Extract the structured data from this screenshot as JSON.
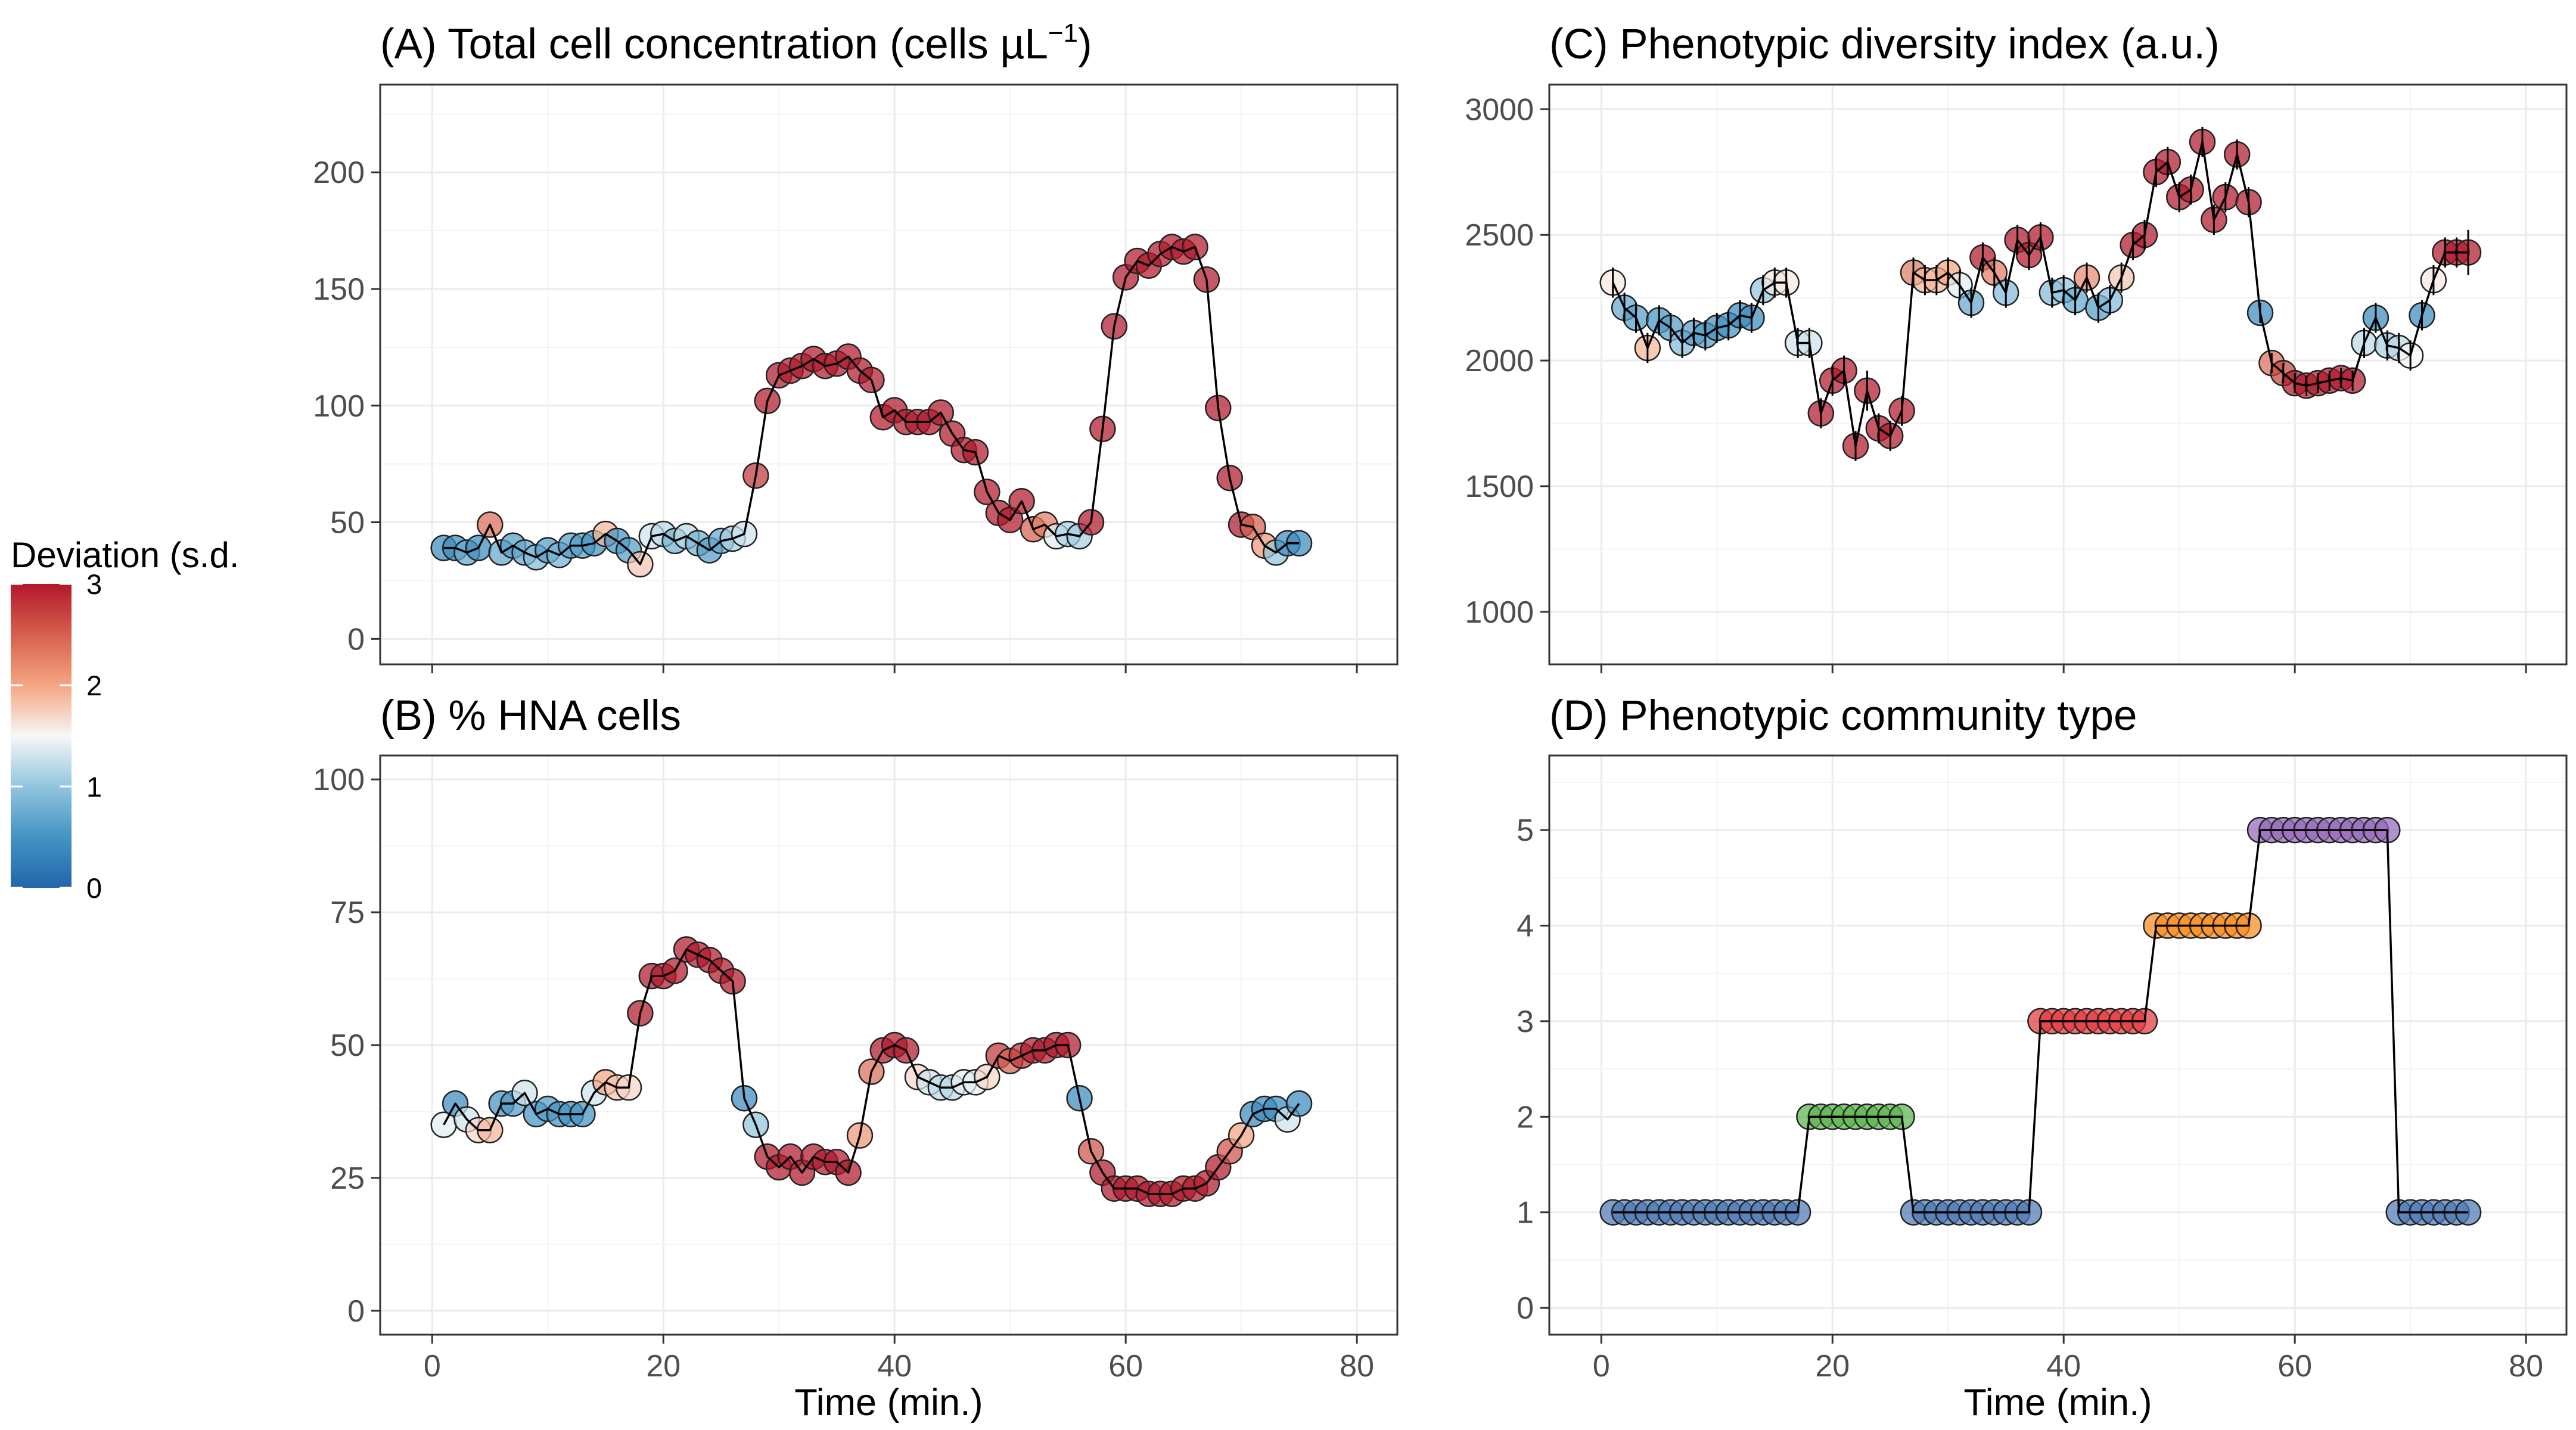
{
  "legend": {
    "title": "Deviation (s.d.",
    "ticks": [
      "0",
      "1",
      "2",
      "3"
    ],
    "min": 0,
    "max": 3,
    "colors": [
      "#2166ac",
      "#4393c3",
      "#92c5de",
      "#f7f7f7",
      "#f4a582",
      "#d6604d",
      "#b2182b"
    ]
  },
  "community_colors": {
    "1": "#4e79b5",
    "2": "#5cb44d",
    "3": "#e3393c",
    "4": "#f88d1e",
    "5": "#9468b8"
  },
  "chart_data": [
    {
      "id": "A",
      "type": "line",
      "title": "(A) Total cell concentration (cells µL",
      "title_sup": "−1",
      "title_end": ")",
      "xlabel": "",
      "ylabel": "",
      "xlim": [
        -4.5,
        83.5
      ],
      "ylim": [
        -10.9,
        237.6
      ],
      "xticks": [
        0,
        20,
        40,
        60,
        80
      ],
      "xticklabels": [
        "",
        "",
        "",
        "",
        ""
      ],
      "yticks": [
        0,
        50,
        100,
        150,
        200
      ],
      "yticklabels": [
        "0",
        "50",
        "100",
        "150",
        "200"
      ],
      "grid": true,
      "color_mode": "deviation",
      "x": [
        1,
        2,
        3,
        4,
        5,
        6,
        7,
        8,
        9,
        10,
        11,
        12,
        13,
        14,
        15,
        16,
        17,
        18,
        19,
        20,
        21,
        22,
        23,
        24,
        25,
        26,
        27,
        28,
        29,
        30,
        31,
        32,
        33,
        34,
        35,
        36,
        37,
        38,
        39,
        40,
        41,
        42,
        43,
        44,
        45,
        46,
        47,
        48,
        49,
        50,
        51,
        52,
        53,
        54,
        55,
        56,
        57,
        58,
        59,
        60,
        61,
        62,
        63,
        64,
        65,
        66,
        67,
        68,
        69,
        70,
        71,
        72,
        73,
        74,
        75
      ],
      "y": [
        39,
        39,
        37,
        39,
        49,
        37,
        40,
        37,
        35,
        38,
        36,
        40,
        40,
        41,
        45,
        42,
        38,
        32,
        44,
        45,
        42,
        44,
        41,
        38,
        42,
        43,
        45,
        70,
        102,
        113,
        115,
        117,
        120,
        117,
        118,
        121,
        115,
        111,
        95,
        98,
        93,
        93,
        93,
        97,
        88,
        81,
        80,
        63,
        54,
        51,
        59,
        47,
        49,
        44,
        45,
        44,
        50,
        90,
        134,
        155,
        162,
        160,
        165,
        168,
        166,
        168,
        154,
        99,
        69,
        49,
        48,
        40,
        37,
        41,
        41
      ],
      "dev": [
        0.4,
        0.4,
        0.7,
        0.4,
        2.4,
        0.7,
        0.6,
        0.7,
        0.9,
        0.6,
        0.8,
        0.6,
        0.6,
        0.5,
        1.9,
        0.5,
        0.6,
        1.8,
        1.3,
        1.2,
        0.8,
        1.2,
        0.8,
        0.6,
        0.7,
        1.1,
        1.3,
        2.8,
        3,
        3,
        3,
        3,
        3,
        3,
        3,
        3,
        3,
        3,
        3,
        3,
        3,
        3,
        3,
        3,
        3,
        3,
        3,
        3,
        3,
        3,
        3,
        2.5,
        2.3,
        1.4,
        1.1,
        1.1,
        3,
        3,
        3,
        3,
        3,
        3,
        3,
        3,
        3,
        3,
        3,
        3,
        3,
        3,
        2.5,
        2.1,
        1,
        0.4,
        0.4
      ]
    },
    {
      "id": "B",
      "type": "line",
      "title": "(B) % HNA cells",
      "xlabel": "Time (min.)",
      "ylabel": "",
      "xlim": [
        -4.5,
        83.5
      ],
      "ylim": [
        -4.5,
        104.5
      ],
      "xticks": [
        0,
        20,
        40,
        60,
        80
      ],
      "xticklabels": [
        "0",
        "20",
        "40",
        "60",
        "80"
      ],
      "yticks": [
        0,
        25,
        50,
        75,
        100
      ],
      "yticklabels": [
        "0",
        "25",
        "50",
        "75",
        "100"
      ],
      "grid": true,
      "color_mode": "deviation",
      "x": [
        1,
        2,
        3,
        4,
        5,
        6,
        7,
        8,
        9,
        10,
        11,
        12,
        13,
        14,
        15,
        16,
        17,
        18,
        19,
        20,
        21,
        22,
        23,
        24,
        25,
        26,
        27,
        28,
        29,
        30,
        31,
        32,
        33,
        34,
        35,
        36,
        37,
        38,
        39,
        40,
        41,
        42,
        43,
        44,
        45,
        46,
        47,
        48,
        49,
        50,
        51,
        52,
        53,
        54,
        55,
        56,
        57,
        58,
        59,
        60,
        61,
        62,
        63,
        64,
        65,
        66,
        67,
        68,
        69,
        70,
        71,
        72,
        73,
        74,
        75
      ],
      "y": [
        35,
        39,
        36,
        34,
        34,
        39,
        39,
        41,
        37,
        38,
        37,
        37,
        37,
        41,
        43,
        42,
        42,
        56,
        63,
        63,
        64,
        68,
        67,
        66,
        64,
        62,
        40,
        35,
        29,
        27,
        29,
        26,
        29,
        28,
        28,
        26,
        33,
        45,
        49,
        50,
        49,
        44,
        43,
        42,
        42,
        43,
        43,
        44,
        48,
        47,
        48,
        49,
        49,
        50,
        50,
        40,
        30,
        26,
        23,
        23,
        23,
        22,
        22,
        22,
        23,
        23,
        24,
        27,
        30,
        33,
        37,
        38,
        38,
        36,
        39
      ],
      "dev": [
        1.4,
        0.4,
        1.3,
        1.7,
        1.9,
        0.5,
        0.6,
        1.3,
        0.5,
        0.6,
        0.5,
        0.5,
        0.5,
        1.3,
        2,
        1.8,
        1.7,
        3,
        3,
        3,
        3,
        3,
        3,
        3,
        3,
        3,
        0.4,
        1,
        3,
        3,
        3,
        3,
        3,
        3,
        3,
        3,
        2.1,
        2.4,
        3,
        3,
        3,
        1.7,
        1.3,
        1.2,
        1.2,
        1.4,
        1.4,
        1.7,
        2.8,
        2.5,
        2.8,
        3,
        3,
        3,
        3,
        0.4,
        2.6,
        3,
        3,
        3,
        3,
        3,
        3,
        3,
        3,
        3,
        3,
        3,
        2.6,
        2,
        0.4,
        0.4,
        0.4,
        1.3,
        0.4
      ]
    },
    {
      "id": "C",
      "type": "line",
      "title": "(C) Phenotypic diversity index (a.u.)",
      "xlabel": "",
      "ylabel": "",
      "xlim": [
        -4.5,
        83.5
      ],
      "ylim": [
        791,
        3098
      ],
      "xticks": [
        0,
        20,
        40,
        60,
        80
      ],
      "xticklabels": [
        "",
        "",
        "",
        "",
        ""
      ],
      "yticks": [
        1000,
        1500,
        2000,
        2500,
        3000
      ],
      "yticklabels": [
        "1000",
        "1500",
        "2000",
        "2500",
        "3000"
      ],
      "grid": true,
      "error_bars": true,
      "color_mode": "deviation",
      "x": [
        1,
        2,
        3,
        4,
        5,
        6,
        7,
        8,
        9,
        10,
        11,
        12,
        13,
        14,
        15,
        16,
        17,
        18,
        19,
        20,
        21,
        22,
        23,
        24,
        25,
        26,
        27,
        28,
        29,
        30,
        31,
        32,
        33,
        34,
        35,
        36,
        37,
        38,
        39,
        40,
        41,
        42,
        43,
        44,
        45,
        46,
        47,
        48,
        49,
        50,
        51,
        52,
        53,
        54,
        55,
        56,
        57,
        58,
        59,
        60,
        61,
        62,
        63,
        64,
        65,
        66,
        67,
        68,
        69,
        70,
        71,
        72,
        73,
        74,
        75
      ],
      "y": [
        2310,
        2210,
        2170,
        2050,
        2160,
        2130,
        2070,
        2110,
        2100,
        2130,
        2140,
        2180,
        2170,
        2280,
        2310,
        2310,
        2070,
        2070,
        1790,
        1920,
        1960,
        1660,
        1880,
        1730,
        1700,
        1800,
        2350,
        2320,
        2320,
        2350,
        2300,
        2230,
        2410,
        2350,
        2270,
        2480,
        2420,
        2490,
        2270,
        2280,
        2240,
        2330,
        2210,
        2240,
        2330,
        2460,
        2500,
        2750,
        2790,
        2650,
        2680,
        2870,
        2560,
        2650,
        2820,
        2630,
        2190,
        1990,
        1950,
        1910,
        1900,
        1910,
        1920,
        1930,
        1920,
        2070,
        2170,
        2060,
        2050,
        2020,
        2180,
        2320,
        2430,
        2430,
        2430
      ],
      "err": [
        60,
        60,
        60,
        60,
        60,
        60,
        60,
        60,
        60,
        60,
        60,
        60,
        60,
        60,
        60,
        60,
        60,
        60,
        60,
        60,
        60,
        60,
        80,
        60,
        60,
        60,
        60,
        60,
        60,
        60,
        60,
        60,
        60,
        60,
        60,
        60,
        60,
        60,
        60,
        60,
        60,
        60,
        60,
        60,
        60,
        60,
        60,
        60,
        60,
        60,
        60,
        60,
        60,
        60,
        60,
        60,
        40,
        40,
        40,
        40,
        40,
        40,
        40,
        40,
        40,
        60,
        60,
        60,
        60,
        60,
        60,
        60,
        60,
        60,
        90
      ],
      "dev": [
        1.6,
        0.7,
        0.6,
        1.9,
        0.5,
        0.6,
        0.9,
        0.6,
        0.6,
        0.5,
        0.5,
        0.4,
        0.4,
        1,
        1.6,
        1.6,
        1.3,
        1.3,
        3,
        3,
        3,
        3,
        3,
        3,
        3,
        3,
        2.3,
        1.9,
        1.9,
        2,
        1.4,
        0.7,
        3,
        2.3,
        0.9,
        3,
        3,
        3,
        0.9,
        1,
        0.7,
        2.2,
        0.6,
        0.9,
        1.8,
        3,
        3,
        3,
        3,
        3,
        3,
        3,
        3,
        3,
        3,
        3,
        0.4,
        2.4,
        2.7,
        3,
        3,
        3,
        3,
        3,
        3,
        1.2,
        0.4,
        1.1,
        1.2,
        1.5,
        0.4,
        1.6,
        3,
        3,
        3
      ]
    },
    {
      "id": "D",
      "type": "line",
      "title": "(D) Phenotypic community type",
      "xlabel": "Time (min.)",
      "ylabel": "",
      "xlim": [
        -4.5,
        83.5
      ],
      "ylim": [
        -0.28,
        5.78
      ],
      "xticks": [
        0,
        20,
        40,
        60,
        80
      ],
      "xticklabels": [
        "0",
        "20",
        "40",
        "60",
        "80"
      ],
      "yticks": [
        0,
        1,
        2,
        3,
        4,
        5
      ],
      "yticklabels": [
        "0",
        "1",
        "2",
        "3",
        "4",
        "5"
      ],
      "grid": true,
      "color_mode": "community",
      "x": [
        1,
        2,
        3,
        4,
        5,
        6,
        7,
        8,
        9,
        10,
        11,
        12,
        13,
        14,
        15,
        16,
        17,
        18,
        19,
        20,
        21,
        22,
        23,
        24,
        25,
        26,
        27,
        28,
        29,
        30,
        31,
        32,
        33,
        34,
        35,
        36,
        37,
        38,
        39,
        40,
        41,
        42,
        43,
        44,
        45,
        46,
        47,
        48,
        49,
        50,
        51,
        52,
        53,
        54,
        55,
        56,
        57,
        58,
        59,
        60,
        61,
        62,
        63,
        64,
        65,
        66,
        67,
        68,
        69,
        70,
        71,
        72,
        73,
        74,
        75
      ],
      "y": [
        1,
        1,
        1,
        1,
        1,
        1,
        1,
        1,
        1,
        1,
        1,
        1,
        1,
        1,
        1,
        1,
        1,
        2,
        2,
        2,
        2,
        2,
        2,
        2,
        2,
        2,
        1,
        1,
        1,
        1,
        1,
        1,
        1,
        1,
        1,
        1,
        1,
        3,
        3,
        3,
        3,
        3,
        3,
        3,
        3,
        3,
        3,
        4,
        4,
        4,
        4,
        4,
        4,
        4,
        4,
        4,
        5,
        5,
        5,
        5,
        5,
        5,
        5,
        5,
        5,
        5,
        5,
        5,
        1,
        1,
        1,
        1,
        1,
        1,
        1
      ]
    }
  ]
}
